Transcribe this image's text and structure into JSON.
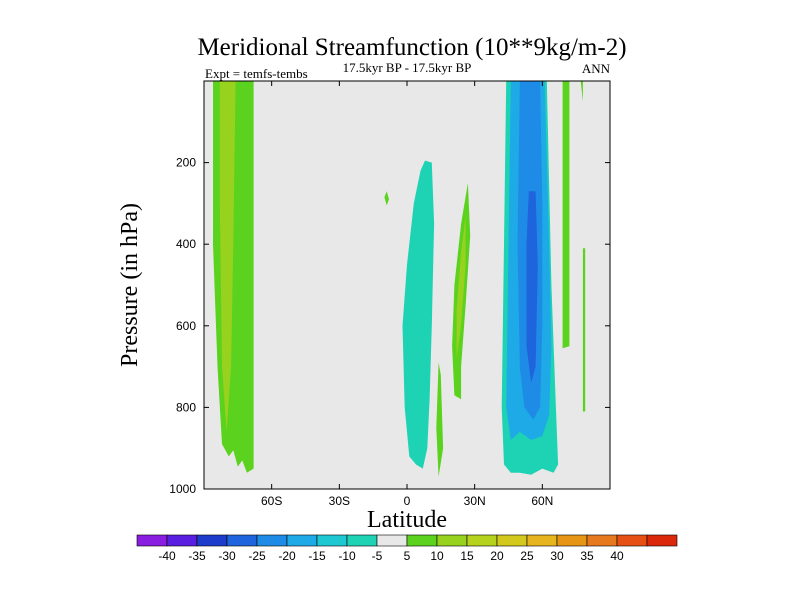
{
  "chart_data": {
    "type": "heatmap",
    "title": "Meridional Streamfunction (10**9kg/m-2)",
    "subtitle": "17.5kyr BP - 17.5kyr BP",
    "left_label": "Expt = temfs-tembs",
    "right_label": "ANN",
    "xlabel": "Latitude",
    "ylabel": "Pressure (in hPa)",
    "xlim": [
      -90,
      90
    ],
    "ylim": [
      0,
      1000
    ],
    "x_ticks": [
      {
        "value": -60,
        "label": "60S"
      },
      {
        "value": -30,
        "label": "30S"
      },
      {
        "value": 0,
        "label": "0"
      },
      {
        "value": 30,
        "label": "30N"
      },
      {
        "value": 60,
        "label": "60N"
      }
    ],
    "y_ticks": [
      {
        "value": 200,
        "label": "200"
      },
      {
        "value": 400,
        "label": "400"
      },
      {
        "value": 600,
        "label": "600"
      },
      {
        "value": 800,
        "label": "800"
      },
      {
        "value": 1000,
        "label": "1000"
      }
    ],
    "background_color": "#e8e8e8",
    "colorbar": {
      "colors": [
        "#8a1ee0",
        "#5a1ee0",
        "#1e3ccc",
        "#1e64dc",
        "#1e8ce6",
        "#1eaae6",
        "#1ec8d2",
        "#1ed2b4",
        "#e8e8e8",
        "#5ad21e",
        "#96d21e",
        "#b4d21e",
        "#d2c81e",
        "#e6b41e",
        "#e69614",
        "#e6781e",
        "#e65014",
        "#dc280a"
      ],
      "labels": [
        "-40",
        "-35",
        "-30",
        "-25",
        "-20",
        "-15",
        "-10",
        "-5",
        "5",
        "10",
        "15",
        "20",
        "25",
        "30",
        "35",
        "40"
      ]
    },
    "regions": [
      {
        "name": "southern-polar-cell",
        "color": "#5ad21e",
        "points": [
          [
            -86,
            0
          ],
          [
            -68,
            0
          ],
          [
            -68,
            950
          ],
          [
            -71,
            960
          ],
          [
            -73,
            930
          ],
          [
            -75,
            945
          ],
          [
            -77,
            905
          ],
          [
            -79,
            920
          ],
          [
            -82,
            890
          ],
          [
            -84,
            700
          ],
          [
            -86,
            400
          ]
        ]
      },
      {
        "name": "southern-polar-core",
        "color": "#96d21e",
        "points": [
          [
            -83,
            0
          ],
          [
            -76,
            0
          ],
          [
            -77,
            400
          ],
          [
            -78,
            700
          ],
          [
            -80,
            860
          ],
          [
            -82,
            700
          ],
          [
            -83,
            300
          ]
        ]
      },
      {
        "name": "southern-hadley-cell",
        "color": "#1ed2b4",
        "points": [
          [
            8,
            195
          ],
          [
            11,
            200
          ],
          [
            12,
            350
          ],
          [
            11,
            600
          ],
          [
            10,
            780
          ],
          [
            9,
            900
          ],
          [
            7,
            950
          ],
          [
            4,
            940
          ],
          [
            1,
            920
          ],
          [
            -1,
            800
          ],
          [
            -2,
            600
          ],
          [
            0,
            450
          ],
          [
            3,
            300
          ],
          [
            6,
            220
          ]
        ]
      },
      {
        "name": "tropical-speck",
        "color": "#5ad21e",
        "points": [
          [
            -9,
            270
          ],
          [
            -8,
            290
          ],
          [
            -9,
            305
          ],
          [
            -10,
            285
          ]
        ]
      },
      {
        "name": "northern-hadley-green",
        "color": "#5ad21e",
        "points": [
          [
            27,
            250
          ],
          [
            28,
            380
          ],
          [
            26,
            550
          ],
          [
            24,
            700
          ],
          [
            24,
            780
          ],
          [
            21,
            770
          ],
          [
            20,
            650
          ],
          [
            21,
            500
          ],
          [
            24,
            350
          ]
        ]
      },
      {
        "name": "northern-hadley-core",
        "color": "#96d21e",
        "points": [
          [
            26,
            330
          ],
          [
            26,
            450
          ],
          [
            24,
            600
          ],
          [
            22,
            680
          ],
          [
            22,
            560
          ],
          [
            24,
            420
          ]
        ]
      },
      {
        "name": "tropical-thin-streak",
        "color": "#5ad21e",
        "points": [
          [
            14,
            690
          ],
          [
            15,
            720
          ],
          [
            16,
            900
          ],
          [
            14,
            970
          ],
          [
            13,
            850
          ]
        ]
      },
      {
        "name": "northern-ferrel-outer",
        "color": "#1ed2b4",
        "points": [
          [
            44,
            0
          ],
          [
            62,
            0
          ],
          [
            64,
            500
          ],
          [
            66,
            800
          ],
          [
            67,
            940
          ],
          [
            65,
            960
          ],
          [
            60,
            950
          ],
          [
            55,
            965
          ],
          [
            50,
            960
          ],
          [
            46,
            960
          ],
          [
            43,
            940
          ],
          [
            42,
            800
          ],
          [
            43,
            400
          ]
        ]
      },
      {
        "name": "northern-ferrel-mid",
        "color": "#1eaae6",
        "points": [
          [
            46,
            0
          ],
          [
            61,
            0
          ],
          [
            63,
            400
          ],
          [
            64,
            650
          ],
          [
            63,
            820
          ],
          [
            60,
            870
          ],
          [
            55,
            880
          ],
          [
            50,
            860
          ],
          [
            46,
            880
          ],
          [
            44,
            800
          ],
          [
            45,
            400
          ]
        ]
      },
      {
        "name": "northern-ferrel-inner",
        "color": "#1e8ce6",
        "points": [
          [
            50,
            0
          ],
          [
            59,
            0
          ],
          [
            60,
            300
          ],
          [
            60,
            600
          ],
          [
            59,
            800
          ],
          [
            56,
            830
          ],
          [
            52,
            800
          ],
          [
            50,
            700
          ],
          [
            49,
            400
          ]
        ]
      },
      {
        "name": "northern-ferrel-core",
        "color": "#1e64dc",
        "points": [
          [
            54,
            270
          ],
          [
            57,
            270
          ],
          [
            58,
            450
          ],
          [
            57,
            700
          ],
          [
            55,
            740
          ],
          [
            53,
            650
          ],
          [
            53,
            400
          ]
        ]
      },
      {
        "name": "northern-polar-green",
        "color": "#5ad21e",
        "points": [
          [
            69,
            0
          ],
          [
            72,
            0
          ],
          [
            72,
            650
          ],
          [
            69,
            655
          ]
        ]
      },
      {
        "name": "northern-polar-strip",
        "color": "#5ad21e",
        "points": [
          [
            77,
            0
          ],
          [
            78,
            0
          ],
          [
            78,
            50
          ]
        ]
      },
      {
        "name": "northern-polar-thin",
        "color": "#5ad21e",
        "points": [
          [
            78,
            410
          ],
          [
            79,
            410
          ],
          [
            79,
            810
          ],
          [
            78,
            810
          ]
        ]
      }
    ]
  }
}
